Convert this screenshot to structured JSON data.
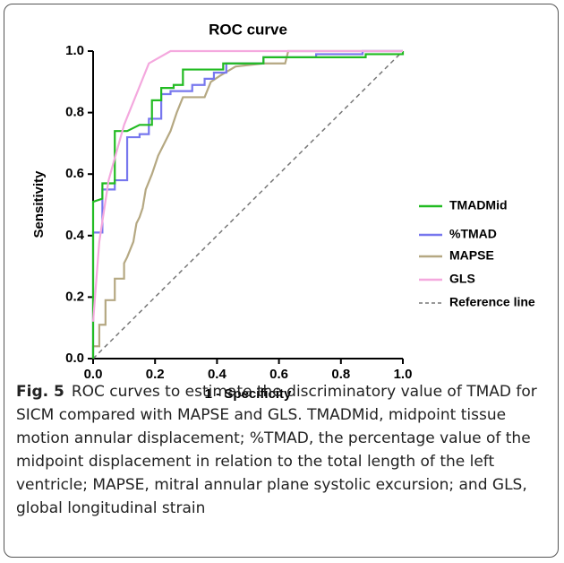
{
  "chart_data": {
    "type": "line",
    "title": "ROC curve",
    "xlabel": "1 - Specificity",
    "ylabel": "Sensitivity",
    "xlim": [
      0,
      1
    ],
    "ylim": [
      0,
      1
    ],
    "xticks": [
      {
        "value": 0,
        "label": "0.0"
      },
      0.2,
      0.4,
      0.6,
      0.8,
      {
        "value": 1,
        "label": "1.0"
      }
    ],
    "yticks": [
      {
        "value": 0,
        "label": "0.0"
      },
      0.2,
      0.4,
      0.6,
      0.8,
      {
        "value": 1,
        "label": "1.0"
      }
    ],
    "legend": "right",
    "series": [
      {
        "name": "TMADMid",
        "color": "#22bb22",
        "dashed": false,
        "x": [
          0,
          0,
          0.03,
          0.03,
          0.07,
          0.07,
          0.11,
          0.15,
          0.19,
          0.19,
          0.22,
          0.22,
          0.26,
          0.26,
          0.29,
          0.29,
          0.42,
          0.42,
          0.55,
          0.55,
          0.88,
          0.88,
          1,
          1
        ],
        "values": [
          0,
          0.51,
          0.52,
          0.57,
          0.57,
          0.74,
          0.74,
          0.76,
          0.76,
          0.84,
          0.84,
          0.88,
          0.88,
          0.89,
          0.89,
          0.94,
          0.94,
          0.96,
          0.96,
          0.98,
          0.98,
          0.99,
          0.99,
          1
        ]
      },
      {
        "name": "%TMAD",
        "color": "#7777ee",
        "dashed": false,
        "x": [
          0,
          0,
          0.03,
          0.03,
          0.07,
          0.07,
          0.11,
          0.11,
          0.15,
          0.15,
          0.18,
          0.18,
          0.22,
          0.22,
          0.25,
          0.25,
          0.32,
          0.32,
          0.36,
          0.36,
          0.39,
          0.39,
          0.43,
          0.43,
          0.55,
          0.55,
          0.72,
          0.72,
          0.87,
          0.87,
          1
        ],
        "values": [
          0,
          0.41,
          0.41,
          0.55,
          0.55,
          0.58,
          0.58,
          0.72,
          0.72,
          0.73,
          0.73,
          0.78,
          0.78,
          0.86,
          0.86,
          0.87,
          0.87,
          0.89,
          0.89,
          0.91,
          0.91,
          0.93,
          0.93,
          0.96,
          0.96,
          0.98,
          0.98,
          0.99,
          0.99,
          1,
          1
        ]
      },
      {
        "name": "MAPSE",
        "color": "#b5a882",
        "dashed": false,
        "x": [
          0,
          0,
          0.02,
          0.02,
          0.04,
          0.04,
          0.07,
          0.07,
          0.1,
          0.1,
          0.11,
          0.13,
          0.14,
          0.15,
          0.16,
          0.17,
          0.19,
          0.21,
          0.23,
          0.25,
          0.27,
          0.29,
          0.36,
          0.38,
          0.41,
          0.46,
          0.55,
          0.62,
          0.63,
          1
        ],
        "values": [
          0,
          0.04,
          0.04,
          0.11,
          0.11,
          0.19,
          0.19,
          0.26,
          0.26,
          0.31,
          0.33,
          0.38,
          0.44,
          0.46,
          0.49,
          0.55,
          0.6,
          0.66,
          0.7,
          0.74,
          0.8,
          0.85,
          0.85,
          0.9,
          0.92,
          0.95,
          0.96,
          0.96,
          1,
          1
        ]
      },
      {
        "name": "GLS",
        "color": "#f4a8de",
        "dashed": false,
        "x": [
          0,
          0.02,
          0.05,
          0.1,
          0.18,
          0.25,
          1
        ],
        "values": [
          0.12,
          0.38,
          0.58,
          0.76,
          0.96,
          1,
          1
        ]
      },
      {
        "name": "Reference line",
        "color": "#777777",
        "dashed": true,
        "x": [
          0,
          1
        ],
        "values": [
          0,
          1
        ]
      }
    ]
  },
  "caption": {
    "label": "Fig. 5",
    "text": "ROC curves to estimate the discriminatory value of TMAD for SICM compared with MAPSE and GLS. TMADMid, midpoint tissue motion annular displacement; %TMAD, the percentage value of the midpoint displacement in relation to the total length of the left ventricle; MAPSE, mitral annular plane systolic excursion; and GLS, global longitudinal strain"
  }
}
